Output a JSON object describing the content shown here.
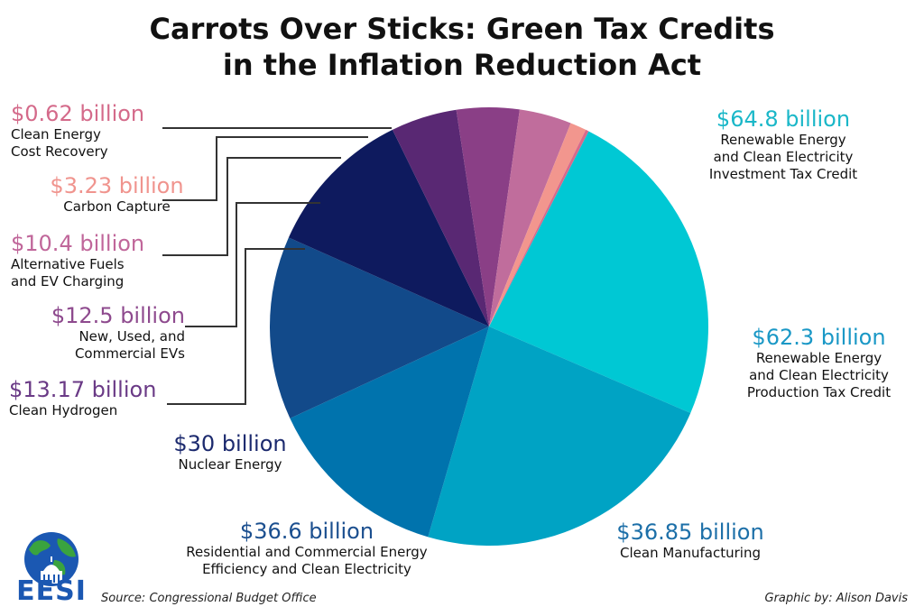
{
  "header": {
    "title_line1": "Carrots Over Sticks: Green Tax Credits",
    "title_line2": "in the Inflation Reduction Act"
  },
  "chart_data": {
    "type": "pie",
    "title": "Carrots Over Sticks: Green Tax Credits in the Inflation Reduction Act",
    "unit": "billion USD",
    "slices": [
      {
        "amount": "$64.8 billion",
        "value": 64.8,
        "label_lines": [
          "Renewable Energy",
          "and Clean Electricity",
          "Investment Tax Credit"
        ],
        "color": "#00c8d4",
        "label_color": "#1ab7c8"
      },
      {
        "amount": "$62.3 billion",
        "value": 62.3,
        "label_lines": [
          "Renewable Energy",
          "and Clean Electricity",
          "Production Tax Credit"
        ],
        "color": "#00a3c4",
        "label_color": "#1a98c6"
      },
      {
        "amount": "$36.85 billion",
        "value": 36.85,
        "label_lines": [
          "Clean Manufacturing"
        ],
        "color": "#0073ad",
        "label_color": "#1c6fa8"
      },
      {
        "amount": "$36.6 billion",
        "value": 36.6,
        "label_lines": [
          "Residential and Commercial Energy",
          "Efficiency and Clean Electricity"
        ],
        "color": "#124a8a",
        "label_color": "#1b4f8f"
      },
      {
        "amount": "$30 billion",
        "value": 30,
        "label_lines": [
          "Nuclear Energy"
        ],
        "color": "#0e1a5e",
        "label_color": "#1c2a6e"
      },
      {
        "amount": "$13.17 billion",
        "value": 13.17,
        "label_lines": [
          "Clean Hydrogen"
        ],
        "color": "#592873",
        "label_color": "#6a3a86"
      },
      {
        "amount": "$12.5 billion",
        "value": 12.5,
        "label_lines": [
          "New, Used, and",
          "Commercial EVs"
        ],
        "color": "#8a3f86",
        "label_color": "#8e4a8e"
      },
      {
        "amount": "$10.4 billion",
        "value": 10.4,
        "label_lines": [
          "Alternative Fuels",
          "and EV Charging"
        ],
        "color": "#c06d9c",
        "label_color": "#c0669a"
      },
      {
        "amount": "$3.23 billion",
        "value": 3.23,
        "label_lines": [
          "Carbon Capture"
        ],
        "color": "#f2968e",
        "label_color": "#f0948e"
      },
      {
        "amount": "$0.62 billion",
        "value": 0.62,
        "label_lines": [
          "Clean Energy",
          "Cost Recovery"
        ],
        "color": "#d86a8a",
        "label_color": "#d46a8a"
      }
    ]
  },
  "footer": {
    "source": "Source: Congressional Budget Office",
    "credit": "Graphic by: Alison Davis",
    "logo_text": "EESI"
  },
  "colors": {
    "leader_line": "#333333",
    "logo_blue": "#1b58b2",
    "logo_green": "#3aa33f"
  }
}
